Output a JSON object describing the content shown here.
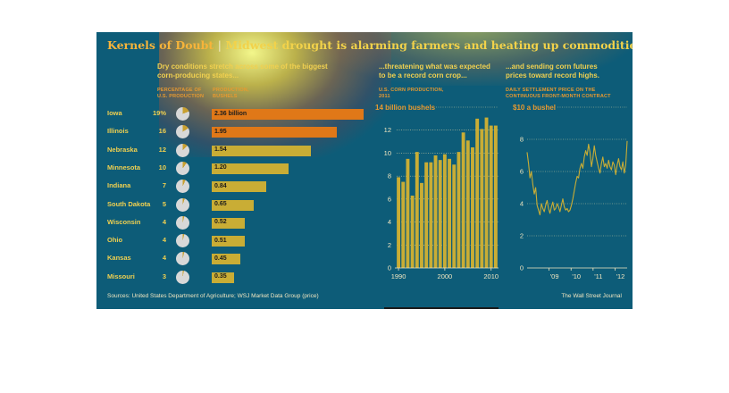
{
  "title": {
    "main": "Kernels of Doubt",
    "separator": "|",
    "subtitle": "Midwest drought is alarming farmers and heating up commodities markets"
  },
  "colors": {
    "background": "#0d5c78",
    "yellow_bar": "#c9ad35",
    "orange_bar": "#e07818",
    "label_yellow": "#f0d050",
    "label_orange": "#e89a30",
    "pie_base": "#d8d8d8",
    "pie_slice": "#c9a030"
  },
  "chart_data": [
    {
      "type": "bar",
      "orientation": "horizontal",
      "subtitle_line1": "Dry conditions stretch across some of the biggest",
      "subtitle_line2": "corn-producing states...",
      "pct_header_line1": "PERCENTAGE OF",
      "pct_header_line2": "U.S. PRODUCTION",
      "prod_header_line1": "PRODUCTION,",
      "prod_header_line2": "BUSHELS",
      "categories": [
        "Iowa",
        "Illinois",
        "Nebraska",
        "Minnesota",
        "Indiana",
        "South Dakota",
        "Wisconsin",
        "Ohio",
        "Kansas",
        "Missouri"
      ],
      "percent_labels": [
        "19%",
        "16",
        "12",
        "10",
        "7",
        "5",
        "4",
        "4",
        "4",
        "3"
      ],
      "percent_values": [
        19,
        16,
        12,
        10,
        7,
        5,
        4,
        4,
        4,
        3
      ],
      "values": [
        2.36,
        1.95,
        1.54,
        1.2,
        0.84,
        0.65,
        0.52,
        0.51,
        0.45,
        0.35
      ],
      "value_labels": [
        "2.36 billion",
        "1.95",
        "1.54",
        "1.20",
        "0.84",
        "0.65",
        "0.52",
        "0.51",
        "0.45",
        "0.35"
      ],
      "unit": "billion bushels"
    },
    {
      "type": "bar",
      "subtitle_line1": "...threatening what was expected",
      "subtitle_line2": "to be a record corn crop...",
      "header_line1": "U.S. CORN PRODUCTION,",
      "header_line2": "2011",
      "unit_label": "14 billion bushels",
      "x": [
        1990,
        1991,
        1992,
        1993,
        1994,
        1995,
        1996,
        1997,
        1998,
        1999,
        2000,
        2001,
        2002,
        2003,
        2004,
        2005,
        2006,
        2007,
        2008,
        2009,
        2010,
        2011
      ],
      "values": [
        7.9,
        7.5,
        9.5,
        6.3,
        10.1,
        7.4,
        9.2,
        9.2,
        9.8,
        9.4,
        9.9,
        9.5,
        9.0,
        10.1,
        11.8,
        11.1,
        10.5,
        13.0,
        12.1,
        13.1,
        12.4,
        12.4
      ],
      "ylim": [
        0,
        14
      ],
      "yticks": [
        0,
        2,
        4,
        6,
        8,
        10,
        12
      ],
      "ytick_labels": [
        "0",
        "2",
        "4",
        "6",
        "8",
        "10",
        "12"
      ],
      "xtick_labels": [
        "1990",
        "2000",
        "2010"
      ],
      "grid": true
    },
    {
      "type": "line",
      "subtitle_line1": "...and sending corn futures",
      "subtitle_line2": "prices toward record highs.",
      "header_line1": "DAILY SETTLEMENT PRICE ON THE",
      "header_line2": "CONTINUOUS FRONT-MONTH CONTRACT",
      "unit_label": "$10 a bushel",
      "x_start": 2008.0,
      "x_end": 2012.55,
      "y": [
        7.2,
        6.5,
        5.6,
        6.0,
        5.2,
        4.6,
        5.0,
        3.9,
        3.6,
        3.3,
        4.0,
        3.7,
        3.5,
        3.9,
        4.2,
        3.7,
        3.4,
        3.8,
        4.1,
        3.6,
        3.7,
        4.0,
        3.8,
        3.5,
        3.9,
        4.3,
        3.8,
        3.6,
        3.7,
        3.5,
        3.6,
        3.9,
        4.3,
        4.8,
        5.3,
        5.7,
        5.6,
        6.2,
        6.5,
        6.2,
        6.9,
        7.3,
        7.0,
        7.7,
        7.2,
        6.3,
        6.8,
        7.6,
        7.0,
        6.6,
        6.2,
        5.9,
        6.5,
        6.9,
        6.3,
        6.5,
        6.2,
        6.7,
        6.3,
        6.1,
        6.6,
        6.4,
        5.8,
        6.4,
        6.8,
        6.3,
        6.1,
        6.6,
        5.9,
        6.4,
        7.9
      ],
      "ylim": [
        0,
        10
      ],
      "yticks": [
        0,
        2,
        4,
        6,
        8
      ],
      "ytick_labels": [
        "0",
        "2",
        "4",
        "6",
        "8"
      ],
      "xtick_positions": [
        2009,
        2010,
        2011,
        2012
      ],
      "xtick_labels": [
        "'09",
        "'10",
        "'11",
        "'12"
      ],
      "grid": true
    }
  ],
  "footer": {
    "sources": "Sources: United States Department of Agriculture; WSJ Market Data Group (price)",
    "credit": "The Wall Street Journal"
  }
}
